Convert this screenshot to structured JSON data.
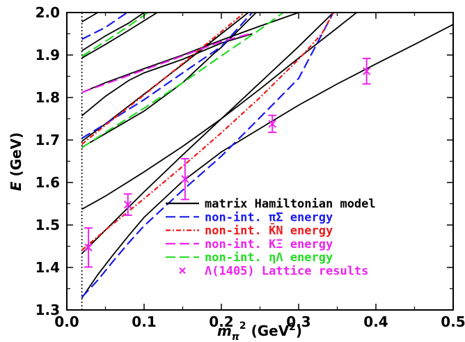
{
  "chart_data": {
    "type": "line",
    "title": "",
    "xlabel": "m_π² (GeV²)",
    "ylabel": "E (GeV)",
    "xlim": [
      0.0,
      0.5
    ],
    "ylim": [
      1.3,
      2.0
    ],
    "x_ticks": [
      "0.0",
      "0.1",
      "0.2",
      "0.3",
      "0.4",
      "0.5"
    ],
    "y_ticks": [
      "1.3",
      "1.4",
      "1.5",
      "1.6",
      "1.7",
      "1.8",
      "1.9",
      "2.0"
    ],
    "physical_point_marker": {
      "x": 0.0195,
      "style": "dotted"
    },
    "legend": {
      "placement": "bottom-right",
      "entries": [
        {
          "label": "matrix Hamiltonian model",
          "color": "#000000",
          "style": "solid"
        },
        {
          "label": "non-int. πΣ energy",
          "color": "#1a1aee",
          "style": "dashed"
        },
        {
          "label": "non-int. K̄N energy",
          "color": "#ee1a1a",
          "style": "dotted-dash"
        },
        {
          "label": "non-int. KΞ energy",
          "color": "#ee22ee",
          "style": "dashed"
        },
        {
          "label": "non-int. ηΛ energy",
          "color": "#22dd22",
          "style": "dashed"
        },
        {
          "label": "Λ(1405) Lattice results",
          "color": "#ee22ee",
          "style": "marker-x"
        }
      ]
    },
    "series": [
      {
        "name": "matrix Hamiltonian model",
        "color": "#000000",
        "style": "solid",
        "curves": [
          [
            [
              0.0195,
              1.328
            ],
            [
              0.04,
              1.383
            ],
            [
              0.06,
              1.43
            ],
            [
              0.08,
              1.475
            ],
            [
              0.1,
              1.518
            ],
            [
              0.15,
              1.603
            ],
            [
              0.2,
              1.672
            ],
            [
              0.25,
              1.727
            ],
            [
              0.3,
              1.782
            ],
            [
              0.35,
              1.832
            ],
            [
              0.4,
              1.879
            ],
            [
              0.45,
              1.925
            ],
            [
              0.5,
              1.972
            ]
          ],
          [
            [
              0.0195,
              1.433
            ],
            [
              0.05,
              1.488
            ],
            [
              0.1,
              1.578
            ],
            [
              0.15,
              1.665
            ],
            [
              0.2,
              1.75
            ],
            [
              0.25,
              1.835
            ],
            [
              0.3,
              1.92
            ],
            [
              0.345,
              2.0
            ]
          ],
          [
            [
              0.0195,
              1.537
            ],
            [
              0.05,
              1.568
            ],
            [
              0.1,
              1.625
            ],
            [
              0.15,
              1.685
            ],
            [
              0.2,
              1.75
            ],
            [
              0.25,
              1.82
            ],
            [
              0.3,
              1.893
            ],
            [
              0.35,
              1.964
            ],
            [
              0.375,
              2.0
            ]
          ],
          [
            [
              0.0195,
              1.683
            ],
            [
              0.05,
              1.715
            ],
            [
              0.1,
              1.768
            ],
            [
              0.15,
              1.835
            ],
            [
              0.19,
              1.903
            ],
            [
              0.2,
              1.918
            ],
            [
              0.245,
              2.0
            ]
          ],
          [
            [
              0.0195,
              1.697
            ],
            [
              0.05,
              1.738
            ],
            [
              0.1,
              1.808
            ],
            [
              0.15,
              1.878
            ],
            [
              0.2,
              1.95
            ],
            [
              0.235,
              2.0
            ]
          ],
          [
            [
              0.0195,
              1.757
            ],
            [
              0.05,
              1.803
            ],
            [
              0.08,
              1.84
            ],
            [
              0.1,
              1.858
            ],
            [
              0.15,
              1.89
            ],
            [
              0.2,
              1.928
            ],
            [
              0.24,
              1.95
            ]
          ],
          [
            [
              0.0195,
              1.812
            ],
            [
              0.05,
              1.835
            ],
            [
              0.1,
              1.868
            ],
            [
              0.15,
              1.9
            ],
            [
              0.2,
              1.935
            ],
            [
              0.25,
              1.968
            ],
            [
              0.3,
              2.0
            ]
          ],
          [
            [
              0.0195,
              1.893
            ],
            [
              0.05,
              1.925
            ],
            [
              0.08,
              1.958
            ],
            [
              0.117,
              2.0
            ]
          ],
          [
            [
              0.0195,
              1.91
            ],
            [
              0.05,
              1.945
            ],
            [
              0.08,
              1.975
            ],
            [
              0.1,
              2.0
            ]
          ],
          [
            [
              0.0195,
              1.978
            ],
            [
              0.04,
              2.0
            ]
          ]
        ]
      },
      {
        "name": "non-int. πΣ energy",
        "color": "#1a1aee",
        "style": "dashed",
        "curves": [
          [
            [
              0.0195,
              1.33
            ],
            [
              0.04,
              1.37
            ],
            [
              0.06,
              1.415
            ],
            [
              0.08,
              1.458
            ],
            [
              0.1,
              1.498
            ],
            [
              0.15,
              1.582
            ],
            [
              0.2,
              1.662
            ],
            [
              0.25,
              1.753
            ],
            [
              0.3,
              1.845
            ],
            [
              0.345,
              2.0
            ]
          ],
          [
            [
              0.0195,
              1.704
            ],
            [
              0.05,
              1.738
            ],
            [
              0.1,
              1.795
            ],
            [
              0.15,
              1.858
            ],
            [
              0.2,
              1.92
            ],
            [
              0.24,
              2.0
            ]
          ],
          [
            [
              0.0195,
              1.937
            ],
            [
              0.05,
              1.965
            ],
            [
              0.078,
              2.0
            ]
          ]
        ]
      },
      {
        "name": "non-int. K̄N energy",
        "color": "#ee1a1a",
        "style": "dotted-dash",
        "curves": [
          [
            [
              0.0195,
              1.441
            ],
            [
              0.05,
              1.488
            ],
            [
              0.1,
              1.562
            ],
            [
              0.15,
              1.638
            ],
            [
              0.2,
              1.717
            ],
            [
              0.25,
              1.8
            ],
            [
              0.3,
              1.89
            ],
            [
              0.33,
              1.95
            ],
            [
              0.345,
              2.0
            ]
          ],
          [
            [
              0.0195,
              1.69
            ],
            [
              0.05,
              1.735
            ],
            [
              0.1,
              1.806
            ],
            [
              0.15,
              1.88
            ],
            [
              0.2,
              1.955
            ],
            [
              0.23,
              2.0
            ]
          ]
        ]
      },
      {
        "name": "non-int. KΞ energy",
        "color": "#ee22ee",
        "style": "dashed",
        "curves": [
          [
            [
              0.0195,
              1.812
            ],
            [
              0.05,
              1.832
            ],
            [
              0.1,
              1.865
            ],
            [
              0.15,
              1.898
            ],
            [
              0.2,
              1.932
            ],
            [
              0.237,
              1.95
            ]
          ]
        ]
      },
      {
        "name": "non-int. ηΛ energy",
        "color": "#22dd22",
        "style": "dashed",
        "curves": [
          [
            [
              0.0195,
              1.682
            ],
            [
              0.05,
              1.718
            ],
            [
              0.1,
              1.775
            ],
            [
              0.15,
              1.835
            ],
            [
              0.2,
              1.898
            ],
            [
              0.25,
              1.96
            ],
            [
              0.28,
              2.0
            ]
          ],
          [
            [
              0.0195,
              1.897
            ],
            [
              0.05,
              1.932
            ],
            [
              0.08,
              1.968
            ],
            [
              0.105,
              2.0
            ]
          ]
        ]
      },
      {
        "name": "Λ(1405) Lattice results",
        "color": "#ee22ee",
        "style": "marker-x",
        "points": [
          {
            "x": 0.028,
            "y": 1.447,
            "err": 0.046
          },
          {
            "x": 0.079,
            "y": 1.548,
            "err": 0.025
          },
          {
            "x": 0.153,
            "y": 1.608,
            "err": 0.048
          },
          {
            "x": 0.266,
            "y": 1.738,
            "err": 0.02
          },
          {
            "x": 0.388,
            "y": 1.862,
            "err": 0.03
          }
        ]
      }
    ]
  }
}
